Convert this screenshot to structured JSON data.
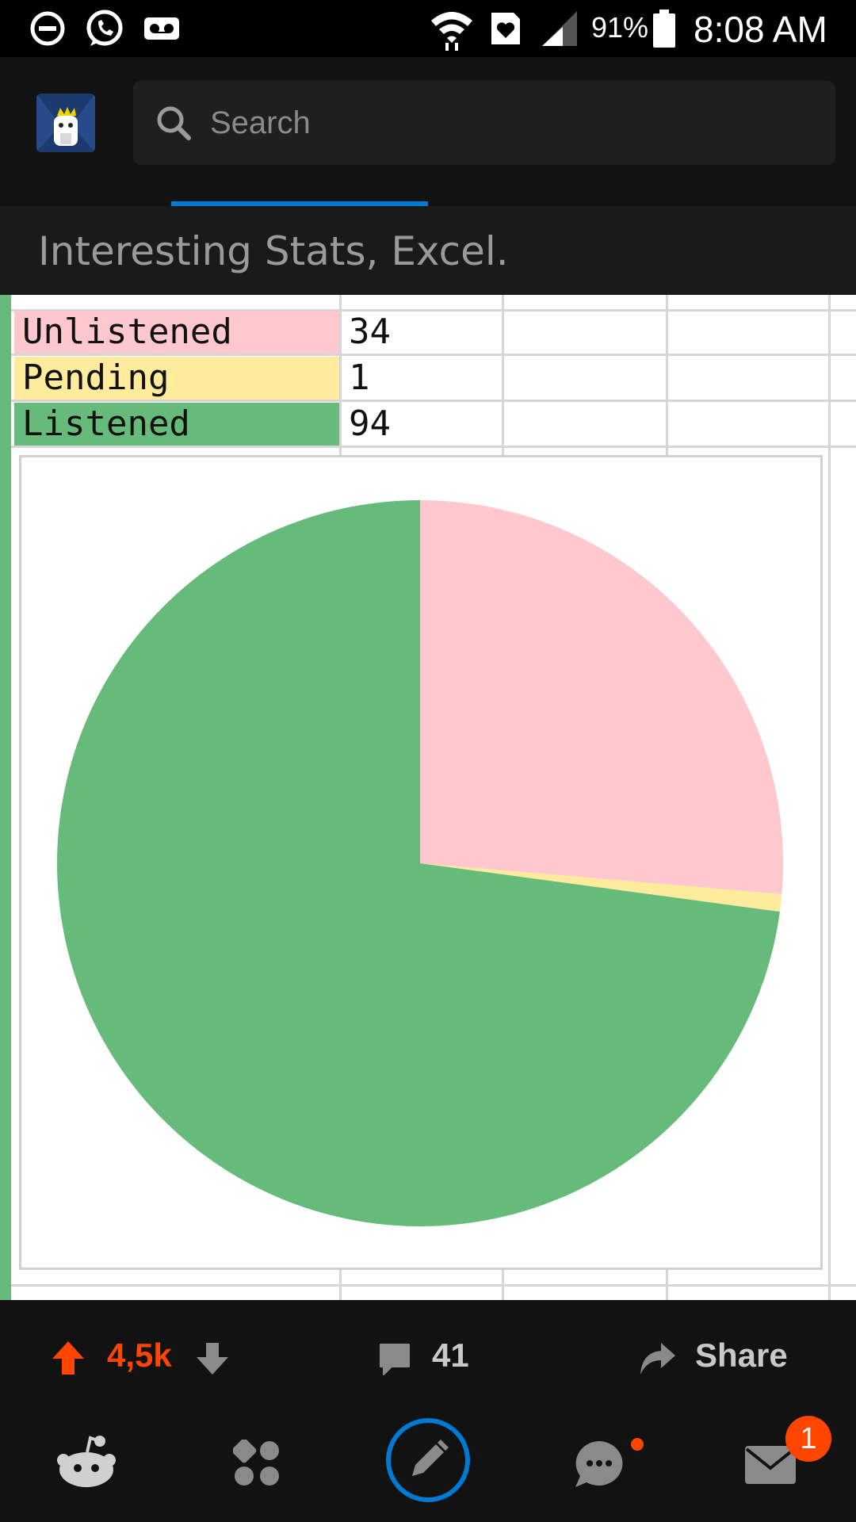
{
  "status_bar": {
    "battery_percent": "91%",
    "time": "8:08 AM",
    "icons": [
      "do-not-disturb-icon",
      "whatsapp-icon",
      "voicemail-icon",
      "wifi-icon",
      "health-icon",
      "signal-icon",
      "battery-icon"
    ]
  },
  "header": {
    "search_placeholder": "Search"
  },
  "post": {
    "title": "Interesting Stats, Excel."
  },
  "spreadsheet": {
    "rows": [
      {
        "label": "Unlistened",
        "value": "34",
        "color": "#ffc7ce"
      },
      {
        "label": "Pending",
        "value": "1",
        "color": "#ffeb9c"
      },
      {
        "label": "Listened",
        "value": "94",
        "color": "#66bb7a"
      }
    ]
  },
  "chart_data": {
    "type": "pie",
    "categories": [
      "Unlistened",
      "Pending",
      "Listened"
    ],
    "values": [
      34,
      1,
      94
    ],
    "colors": [
      "#ffc7ce",
      "#ffeb9c",
      "#66bb7a"
    ],
    "start_angle": "12 o'clock",
    "direction": "clockwise"
  },
  "actions": {
    "votes": "4,5k",
    "comments": "41",
    "share": "Share"
  },
  "bottom_nav": {
    "items": [
      "home-icon",
      "communities-icon",
      "create-post-icon",
      "chat-icon",
      "inbox-icon"
    ],
    "inbox_badge": "1"
  },
  "colors": {
    "accent": "#0079d3",
    "upvote": "#ff4500"
  }
}
